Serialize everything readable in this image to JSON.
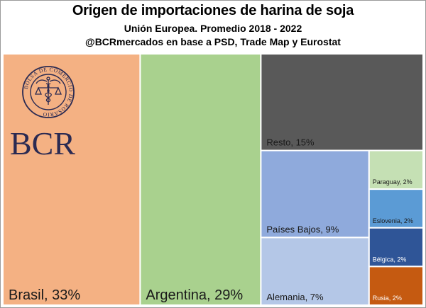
{
  "header": {
    "title": "Origen de importaciones de harina de soja",
    "subtitle": "Unión Europea. Promedio 2018 - 2022",
    "source": "@BCRmercados en base a PSD, Trade Map y Eurostat"
  },
  "logo": {
    "ring_text": "BOLSA DE COMERCIO DE ROSARIO",
    "wordmark": "BCR"
  },
  "chart_data": {
    "type": "treemap",
    "title": "Origen de importaciones de harina de soja",
    "subtitle": "Unión Europea. Promedio 2018 - 2022",
    "units": "%",
    "items": [
      {
        "name": "Brasil",
        "value": 33,
        "label": "Brasil, 33%",
        "color": "#F4B183"
      },
      {
        "name": "Argentina",
        "value": 29,
        "label": "Argentina, 29%",
        "color": "#A9D18E"
      },
      {
        "name": "Resto",
        "value": 15,
        "label": "Resto, 15%",
        "color": "#595959"
      },
      {
        "name": "Países Bajos",
        "value": 9,
        "label": "Países Bajos, 9%",
        "color": "#8FAADC"
      },
      {
        "name": "Alemania",
        "value": 7,
        "label": "Alemania, 7%",
        "color": "#B4C7E7"
      },
      {
        "name": "Paraguay",
        "value": 2,
        "label": "Paraguay, 2%",
        "color": "#C5E0B4"
      },
      {
        "name": "Eslovenia",
        "value": 2,
        "label": "Eslovenia, 2%",
        "color": "#5B9BD5"
      },
      {
        "name": "Bélgica",
        "value": 2,
        "label": "Bélgica, 2%",
        "color": "#2F5597"
      },
      {
        "name": "Rusia",
        "value": 2,
        "label": "Rusia, 2%",
        "color": "#C55A11"
      }
    ]
  }
}
